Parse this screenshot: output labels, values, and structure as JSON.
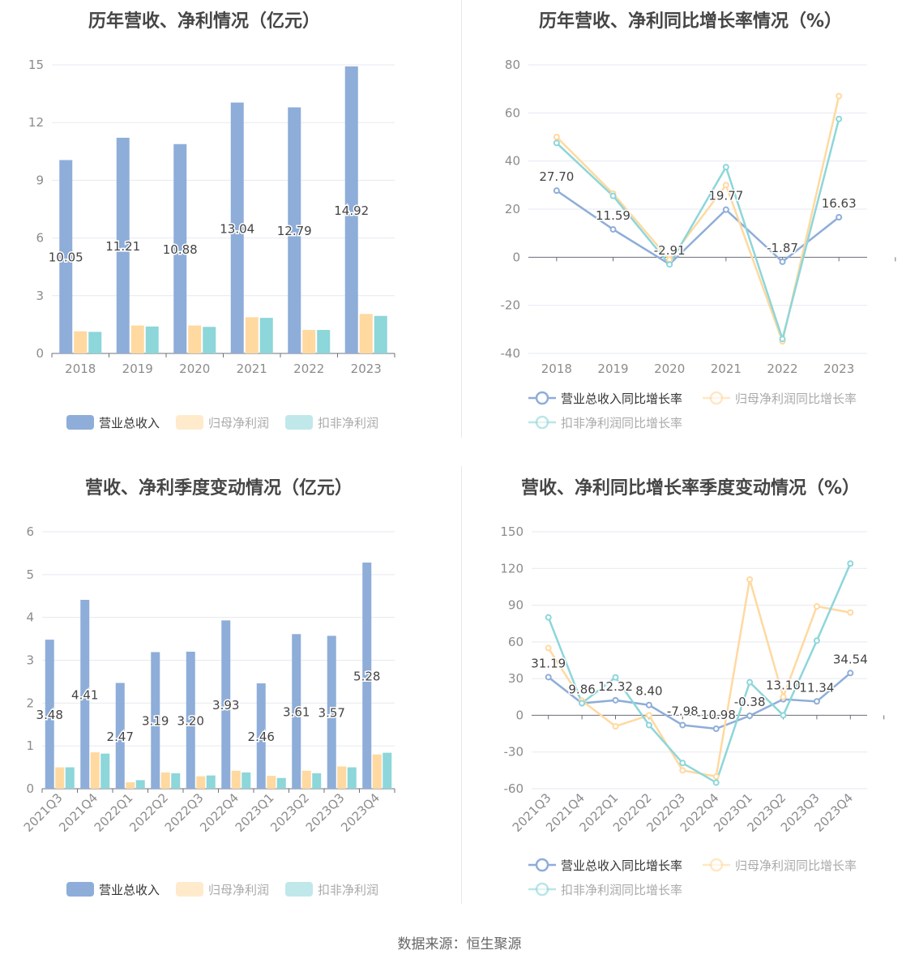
{
  "source_label": "数据来源：恒生聚源",
  "colors": {
    "revenue": "#8eadd9",
    "net_profit": "#ffd9a0",
    "deducted_profit": "#8dd6da",
    "grid": "#e6e9f0",
    "axis": "#6e7079",
    "tick": "#8c8c8c",
    "title": "#464646"
  },
  "chart_data": [
    {
      "id": "annual-values",
      "type": "bar",
      "title": "历年营收、净利情况（亿元）",
      "categories": [
        "2018",
        "2019",
        "2020",
        "2021",
        "2022",
        "2023"
      ],
      "ylim": [
        0,
        15
      ],
      "yticks": [
        0,
        3,
        6,
        9,
        12,
        15
      ],
      "series": [
        {
          "name": "营业总收入",
          "values": [
            10.05,
            11.21,
            10.88,
            13.04,
            12.79,
            14.92
          ],
          "labels": [
            "10.05",
            "11.21",
            "10.88",
            "13.04",
            "12.79",
            "14.92"
          ]
        },
        {
          "name": "归母净利润",
          "values": [
            1.15,
            1.45,
            1.45,
            1.88,
            1.22,
            2.05
          ]
        },
        {
          "name": "扣非净利润",
          "values": [
            1.12,
            1.4,
            1.38,
            1.85,
            1.22,
            1.95
          ]
        }
      ]
    },
    {
      "id": "annual-growth",
      "type": "line",
      "title": "历年营收、净利同比增长率情况（%）",
      "categories": [
        "2018",
        "2019",
        "2020",
        "2021",
        "2022",
        "2023"
      ],
      "ylim": [
        -40,
        80
      ],
      "yticks": [
        -40,
        -20,
        0,
        20,
        40,
        60,
        80
      ],
      "series": [
        {
          "name": "营业总收入同比增长率",
          "values": [
            27.7,
            11.59,
            -2.91,
            19.77,
            -1.87,
            16.63
          ],
          "labels": [
            "27.70",
            "11.59",
            "-2.91",
            "19.77",
            "-1.87",
            "16.63"
          ]
        },
        {
          "name": "归母净利润同比增长率",
          "values": [
            50.0,
            26.5,
            -1.0,
            30.0,
            -35.0,
            67.0
          ]
        },
        {
          "name": "扣非净利润同比增长率",
          "values": [
            47.5,
            25.5,
            -3.0,
            37.5,
            -34.0,
            57.5
          ]
        }
      ]
    },
    {
      "id": "quarterly-values",
      "type": "bar",
      "title": "营收、净利季度变动情况（亿元）",
      "categories": [
        "2021Q3",
        "2021Q4",
        "2022Q1",
        "2022Q2",
        "2022Q3",
        "2022Q4",
        "2023Q1",
        "2023Q2",
        "2023Q3",
        "2023Q4"
      ],
      "ylim": [
        0,
        6
      ],
      "yticks": [
        0,
        1,
        2,
        3,
        4,
        5,
        6
      ],
      "series": [
        {
          "name": "营业总收入",
          "values": [
            3.48,
            4.41,
            2.47,
            3.19,
            3.2,
            3.93,
            2.46,
            3.61,
            3.57,
            5.28
          ],
          "labels": [
            "3.48",
            "4.41",
            "2.47",
            "3.19",
            "3.20",
            "3.93",
            "2.46",
            "3.61",
            "3.57",
            "5.28"
          ]
        },
        {
          "name": "归母净利润",
          "values": [
            0.5,
            0.85,
            0.15,
            0.38,
            0.29,
            0.42,
            0.3,
            0.42,
            0.52,
            0.8
          ]
        },
        {
          "name": "扣非净利润",
          "values": [
            0.5,
            0.82,
            0.2,
            0.36,
            0.31,
            0.38,
            0.25,
            0.36,
            0.5,
            0.84
          ]
        }
      ]
    },
    {
      "id": "quarterly-growth",
      "type": "line",
      "title": "营收、净利同比增长率季度变动情况（%）",
      "categories": [
        "2021Q3",
        "2021Q4",
        "2022Q1",
        "2022Q2",
        "2022Q3",
        "2022Q4",
        "2023Q1",
        "2023Q2",
        "2023Q3",
        "2023Q4"
      ],
      "ylim": [
        -60,
        150
      ],
      "yticks": [
        -60,
        -30,
        0,
        30,
        60,
        90,
        120,
        150
      ],
      "series": [
        {
          "name": "营业总收入同比增长率",
          "values": [
            31.19,
            9.86,
            12.32,
            8.4,
            -7.98,
            -10.98,
            -0.38,
            13.1,
            11.34,
            34.54
          ],
          "labels": [
            "31.19",
            "9.86",
            "12.32",
            "8.40",
            "-7.98",
            "-10.98",
            "-0.38",
            "13.10",
            "11.34",
            "34.54"
          ]
        },
        {
          "name": "归母净利润同比增长率",
          "values": [
            55.0,
            12.0,
            -9.0,
            0.0,
            -45.0,
            -50.0,
            111.0,
            15.0,
            89.0,
            84.0
          ]
        },
        {
          "name": "扣非净利润同比增长率",
          "values": [
            80.0,
            10.0,
            31.0,
            -8.0,
            -39.0,
            -55.0,
            27.0,
            0.0,
            61.0,
            124.0
          ]
        }
      ]
    }
  ]
}
